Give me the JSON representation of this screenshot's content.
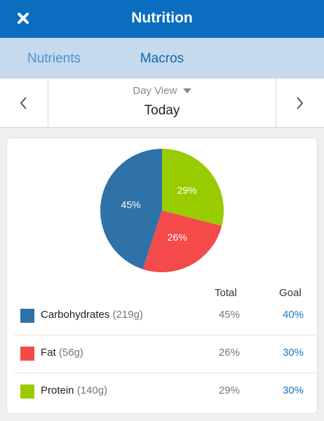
{
  "header": {
    "title": "Nutrition"
  },
  "tabs": [
    "Nutrients",
    "Macros"
  ],
  "date_nav": {
    "view": "Day View",
    "date": "Today"
  },
  "chart_data": {
    "type": "pie",
    "categories": [
      "Carbohydrates",
      "Fat",
      "Protein"
    ],
    "values": [
      45,
      26,
      29
    ],
    "value_labels": [
      "45%",
      "26%",
      "29%"
    ],
    "colors": [
      "#2f72a8",
      "#f54a4a",
      "#99cc00"
    ]
  },
  "table": {
    "columns": [
      "Total",
      "Goal"
    ],
    "rows": [
      {
        "name": "Carbohydrates",
        "amount": "(219g)",
        "total": "45%",
        "goal": "40%"
      },
      {
        "name": "Fat",
        "amount": "(56g)",
        "total": "26%",
        "goal": "30%"
      },
      {
        "name": "Protein",
        "amount": "(140g)",
        "total": "29%",
        "goal": "30%"
      }
    ]
  }
}
